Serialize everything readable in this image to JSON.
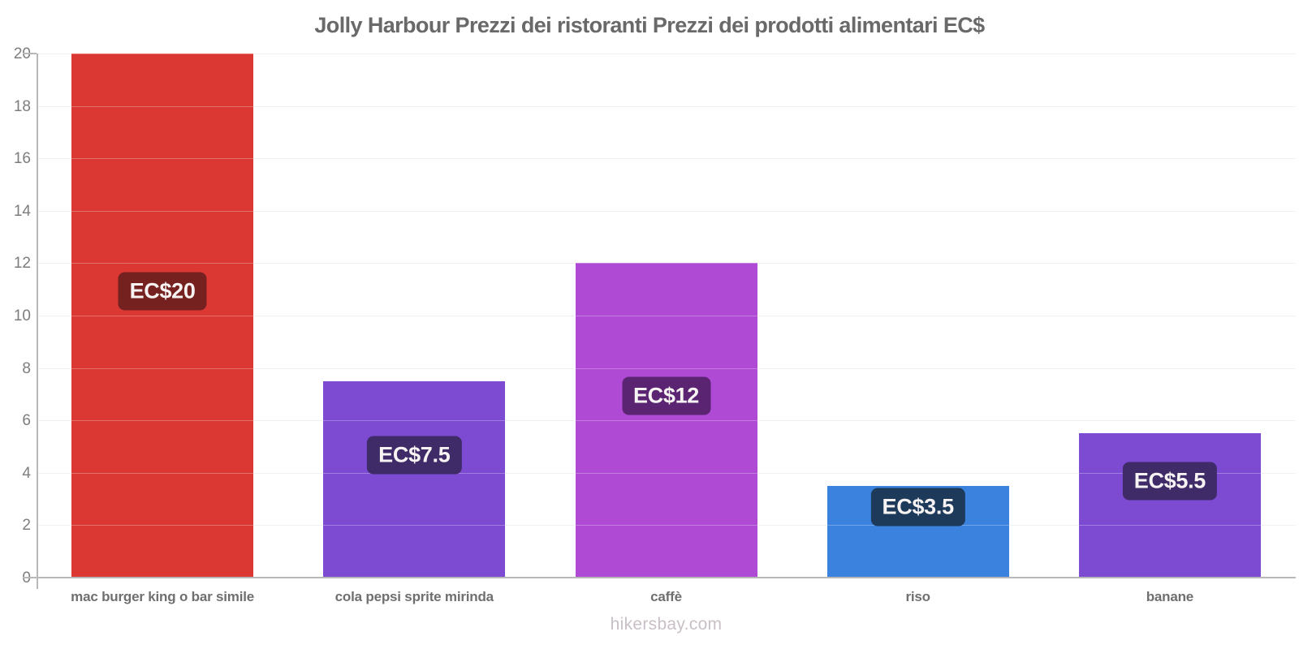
{
  "title": "Jolly Harbour Prezzi dei ristoranti Prezzi dei prodotti alimentari EC$",
  "footer": {
    "watermark": "hikersbay.com"
  },
  "chart_data": {
    "type": "bar",
    "title": "Jolly Harbour Prezzi dei ristoranti Prezzi dei prodotti alimentari EC$",
    "currency": "EC$",
    "categories": [
      "mac burger king o bar simile",
      "cola pepsi sprite mirinda",
      "caffè",
      "riso",
      "banane"
    ],
    "values": [
      20,
      7.5,
      12,
      3.5,
      5.5
    ],
    "bar_labels": [
      "EC$20",
      "EC$7.5",
      "EC$12",
      "EC$3.5",
      "EC$5.5"
    ],
    "bar_colors": [
      "#dc3833",
      "#7c4bd2",
      "#ae4ad4",
      "#3a82de",
      "#7c4bd2"
    ],
    "badge_colors": [
      "#75211f",
      "#3e2b68",
      "#5b2472",
      "#1d3a5a",
      "#3e2b68"
    ],
    "xlabel": "",
    "ylabel": "",
    "ylim": [
      0,
      20
    ],
    "yticks": [
      0,
      2,
      4,
      6,
      8,
      10,
      12,
      14,
      16,
      18,
      20
    ],
    "grid": true,
    "legend": false
  }
}
